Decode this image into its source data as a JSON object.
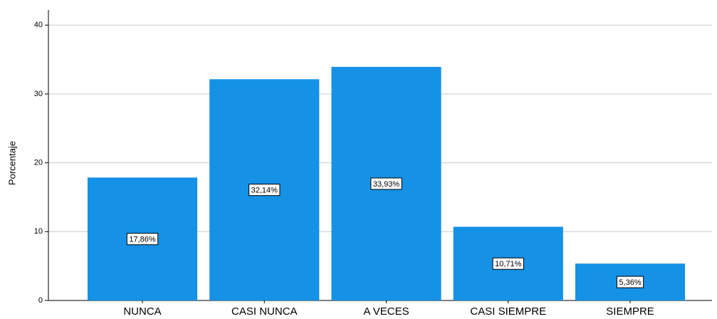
{
  "chart_data": {
    "type": "bar",
    "y_label": "Porcentaje",
    "categories": [
      "NUNCA",
      "CASI NUNCA",
      "A VECES",
      "CASI SIEMPRE",
      "SIEMPRE"
    ],
    "values": [
      17.86,
      32.14,
      33.93,
      10.71,
      5.36
    ],
    "value_labels": [
      "17,86%",
      "32,14%",
      "33,93%",
      "10,71%",
      "5,36%"
    ],
    "color": "#1591e6",
    "ylim": [
      0,
      42.2
    ],
    "yticks": [
      0,
      10,
      20,
      30,
      40
    ],
    "grid": true
  }
}
